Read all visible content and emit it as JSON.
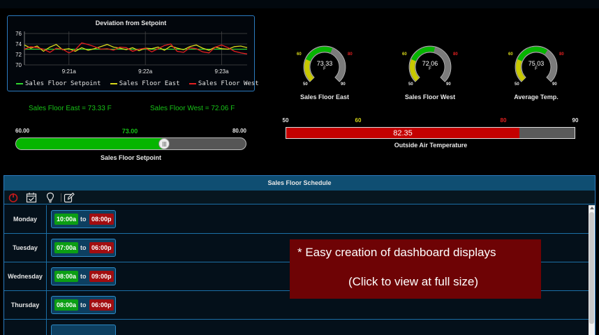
{
  "colors": {
    "accent": "#2b7bbf",
    "green": "#06b500",
    "yellow": "#c8c800",
    "red": "#c40000",
    "gray": "#5a5a5a"
  },
  "trend": {
    "title": "Deviation from Setpoint",
    "y_ticks": [
      "76",
      "74",
      "72",
      "70"
    ],
    "x_ticks": [
      "9:21a",
      "9:22a",
      "9:23a"
    ],
    "legend": [
      {
        "name": "Sales Floor Setpoint",
        "color": "#2fd62f"
      },
      {
        "name": "Sales Floor East",
        "color": "#d8d81a"
      },
      {
        "name": "Sales Floor West",
        "color": "#e42020"
      }
    ]
  },
  "chart_data": {
    "type": "line",
    "title": "Deviation from Setpoint",
    "ylim": [
      70,
      76
    ],
    "x": [
      "9:20:25a",
      "9:20:30a",
      "9:20:35a",
      "9:20:40a",
      "9:20:45a",
      "9:20:50a",
      "9:20:55a",
      "9:21:00a",
      "9:21:05a",
      "9:21:10a",
      "9:21:15a",
      "9:21:20a",
      "9:21:25a",
      "9:21:30a",
      "9:21:35a",
      "9:21:40a",
      "9:21:45a",
      "9:21:50a",
      "9:21:55a",
      "9:22:00a",
      "9:22:05a",
      "9:22:10a",
      "9:22:15a",
      "9:22:20a",
      "9:22:25a",
      "9:22:30a",
      "9:22:35a",
      "9:22:40a",
      "9:22:45a",
      "9:22:50a",
      "9:22:55a",
      "9:23:00a",
      "9:23:05a",
      "9:23:10a",
      "9:23:15a",
      "9:23:20a"
    ],
    "series": [
      {
        "name": "Sales Floor Setpoint",
        "values": [
          73.0,
          73.0,
          73.0,
          73.0,
          73.0,
          73.0,
          73.0,
          73.0,
          73.0,
          73.0,
          73.0,
          73.0,
          73.0,
          73.0,
          73.0,
          73.0,
          73.0,
          73.0,
          73.0,
          73.0,
          73.0,
          73.0,
          73.0,
          73.0,
          73.0,
          73.0,
          73.0,
          73.0,
          73.0,
          73.0,
          73.0,
          73.0,
          73.0,
          73.0,
          73.0,
          73.0
        ]
      },
      {
        "name": "Sales Floor East",
        "values": [
          73.8,
          73.2,
          73.6,
          72.6,
          73.4,
          73.9,
          72.9,
          73.1,
          72.6,
          73.3,
          72.8,
          73.1,
          73.5,
          73.9,
          73.4,
          73.2,
          72.9,
          73.3,
          72.7,
          73.2,
          73.1,
          73.4,
          72.8,
          73.6,
          73.2,
          72.9,
          73.5,
          73.8,
          73.2,
          72.8,
          73.4,
          73.1,
          73.0,
          73.5,
          73.6,
          73.3
        ]
      },
      {
        "name": "Sales Floor West",
        "values": [
          73.0,
          73.5,
          73.3,
          73.0,
          72.4,
          73.2,
          73.0,
          72.3,
          72.9,
          74.2,
          73.9,
          73.5,
          73.0,
          73.1,
          72.8,
          73.4,
          73.3,
          72.6,
          73.0,
          73.2,
          72.5,
          73.1,
          73.7,
          74.0,
          72.6,
          72.4,
          73.3,
          73.1,
          72.5,
          72.3,
          73.4,
          73.8,
          73.3,
          72.6,
          72.3,
          72.1
        ]
      }
    ]
  },
  "readouts": {
    "east": "Sales Floor East = 73.33 F",
    "west": "Sales Floor West = 72.06 F"
  },
  "setpoint": {
    "min": "60.00",
    "max": "80.00",
    "value": "73.00",
    "value_num": 73.0,
    "min_num": 60,
    "max_num": 80,
    "label": "Sales Floor Setpoint"
  },
  "gauges": [
    {
      "name": "Sales Floor East",
      "value": "73.33",
      "value_num": 73.33,
      "unit": "F",
      "min": "50",
      "max": "90",
      "low": "60",
      "high": "80"
    },
    {
      "name": "Sales Floor West",
      "value": "72.06",
      "value_num": 72.06,
      "unit": "F",
      "min": "50",
      "max": "90",
      "low": "60",
      "high": "80"
    },
    {
      "name": "Average Temp.",
      "value": "75.03",
      "value_num": 75.03,
      "unit": "F",
      "min": "50",
      "max": "90",
      "low": "60",
      "high": "80"
    }
  ],
  "outside": {
    "name": "Outside Air Temperature",
    "value": "82.35",
    "value_num": 82.35,
    "min": "50",
    "low": "60",
    "high": "80",
    "max": "90",
    "min_num": 50,
    "max_num": 90
  },
  "schedule": {
    "title": "Sales Floor Schedule",
    "connector": "to",
    "tools": [
      "power-icon",
      "calendar-check-icon",
      "lightbulb-icon",
      "edit-icon"
    ],
    "rows": [
      {
        "day": "Monday",
        "on": "10:00a",
        "off": "08:00p"
      },
      {
        "day": "Tuesday",
        "on": "07:00a",
        "off": "06:00p"
      },
      {
        "day": "Wednesday",
        "on": "08:00a",
        "off": "09:00p"
      },
      {
        "day": "Thursday",
        "on": "08:00a",
        "off": "06:00p"
      },
      {
        "day": "",
        "on": "",
        "off": ""
      }
    ]
  },
  "overlay": {
    "line1": "* Easy creation of dashboard displays",
    "line2": "(Click to view at full size)"
  }
}
